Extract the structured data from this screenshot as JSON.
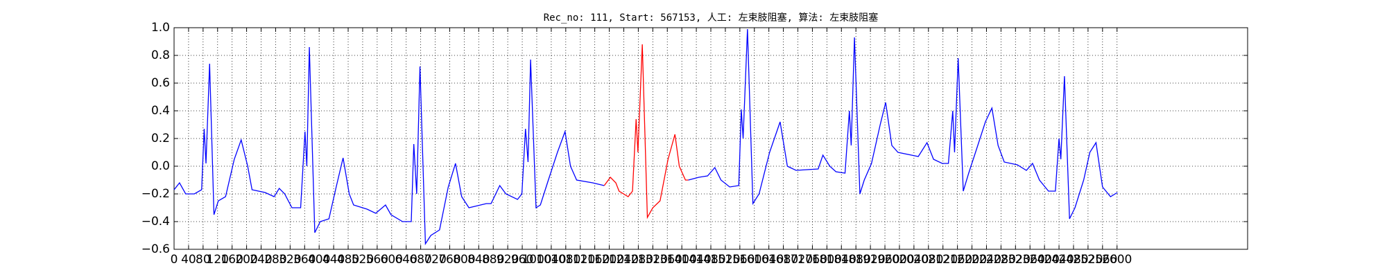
{
  "chart_data": {
    "type": "line",
    "title": "Rec_no: 111, Start: 567153, 人工: 左束肢阻塞, 算法: 左束肢阻塞",
    "xlim": [
      0,
      2960
    ],
    "xticks": [
      0,
      40,
      80,
      120,
      160,
      200,
      240,
      280,
      320,
      360,
      400,
      440,
      480,
      520,
      560,
      600,
      640,
      680,
      720,
      760,
      800,
      840,
      880,
      920,
      960,
      1000,
      1040,
      1080,
      1120,
      1160,
      1200,
      1240,
      1280,
      1320,
      1360,
      1400,
      1440,
      1480,
      1520,
      1560,
      1600,
      1640,
      1680,
      1720,
      1760,
      1800,
      1840,
      1880,
      1920,
      1960,
      2000,
      2040,
      2080,
      2120,
      2160,
      2200,
      2240,
      2280,
      2320,
      2360,
      2400,
      2440,
      2480,
      2520,
      2560,
      2600
    ],
    "ylim": [
      -0.6,
      1.0
    ],
    "yticks": [
      {
        "value": -0.6,
        "label": "−0.6"
      },
      {
        "value": -0.4,
        "label": "−0.4"
      },
      {
        "value": -0.2,
        "label": "−0.2"
      },
      {
        "value": 0.0,
        "label": "0.0"
      },
      0.2,
      0.4,
      0.6,
      0.8,
      {
        "value": 1.0,
        "label": "1.0"
      }
    ],
    "grid": true,
    "series": [
      {
        "color": "#0000ff",
        "x": [
          0,
          15,
          32,
          56,
          76,
          83,
          88,
          98,
          110,
          122,
          142,
          166,
          185,
          203,
          215,
          251,
          276,
          290,
          305,
          325,
          349,
          361,
          366,
          373,
          388,
          403,
          427,
          447,
          466,
          483,
          495,
          532,
          556,
          583,
          598,
          630,
          654,
          661,
          669,
          678,
          693,
          708,
          732,
          756,
          776,
          793,
          813,
          861,
          874,
          898,
          915,
          947,
          959,
          969,
          976,
          983,
          998,
          1010,
          1032,
          1057,
          1078,
          1093,
          1110,
          1154,
          1186
        ],
        "values": [
          -0.17,
          -0.12,
          -0.2,
          -0.2,
          -0.17,
          0.27,
          0.02,
          0.74,
          -0.35,
          -0.25,
          -0.22,
          0.05,
          0.19,
          0.0,
          -0.17,
          -0.19,
          -0.22,
          -0.16,
          -0.2,
          -0.3,
          -0.3,
          0.25,
          0.0,
          0.86,
          -0.48,
          -0.4,
          -0.38,
          -0.15,
          0.06,
          -0.2,
          -0.28,
          -0.31,
          -0.34,
          -0.28,
          -0.35,
          -0.4,
          -0.4,
          0.16,
          -0.2,
          0.72,
          -0.56,
          -0.5,
          -0.46,
          -0.15,
          0.02,
          -0.22,
          -0.3,
          -0.27,
          -0.27,
          -0.14,
          -0.2,
          -0.24,
          -0.2,
          0.27,
          0.03,
          0.77,
          -0.3,
          -0.28,
          -0.1,
          0.1,
          0.25,
          0.0,
          -0.1,
          -0.12,
          -0.14
        ]
      },
      {
        "color": "#ff0000",
        "x": [
          1186,
          1203,
          1218,
          1227,
          1252,
          1264,
          1274,
          1279,
          1291,
          1305,
          1320,
          1340,
          1362,
          1381,
          1393,
          1410,
          1418
        ],
        "values": [
          -0.14,
          -0.08,
          -0.12,
          -0.18,
          -0.22,
          -0.18,
          0.34,
          0.1,
          0.88,
          -0.37,
          -0.3,
          -0.25,
          0.05,
          0.23,
          0.0,
          -0.1,
          -0.1
        ]
      },
      {
        "color": "#0000ff",
        "x": [
          1418,
          1447,
          1471,
          1491,
          1508,
          1532,
          1557,
          1564,
          1569,
          1581,
          1596,
          1613,
          1642,
          1671,
          1691,
          1715,
          1776,
          1789,
          1808,
          1825,
          1850,
          1862,
          1867,
          1876,
          1891,
          1903,
          1923,
          1947,
          1962,
          1979,
          1996,
          2033,
          2052,
          2076,
          2094,
          2118,
          2135,
          2147,
          2152,
          2162,
          2176,
          2191,
          2216,
          2237,
          2255,
          2272,
          2289,
          2325,
          2350,
          2367,
          2386,
          2411,
          2430,
          2440,
          2445,
          2455,
          2469,
          2484,
          2508,
          2525,
          2542,
          2560,
          2582,
          2601
        ],
        "values": [
          -0.1,
          -0.08,
          -0.07,
          -0.01,
          -0.1,
          -0.15,
          -0.14,
          0.41,
          0.2,
          0.99,
          -0.27,
          -0.2,
          0.1,
          0.32,
          0.0,
          -0.03,
          -0.02,
          0.08,
          0.0,
          -0.04,
          -0.05,
          0.4,
          0.15,
          0.93,
          -0.2,
          -0.1,
          0.02,
          0.3,
          0.46,
          0.15,
          0.1,
          0.08,
          0.07,
          0.17,
          0.05,
          0.02,
          0.02,
          0.4,
          0.1,
          0.78,
          -0.18,
          -0.05,
          0.15,
          0.32,
          0.42,
          0.15,
          0.03,
          0.01,
          -0.03,
          0.02,
          -0.1,
          -0.18,
          -0.18,
          0.2,
          0.05,
          0.65,
          -0.38,
          -0.3,
          -0.1,
          0.1,
          0.17,
          -0.15,
          -0.22,
          -0.19
        ]
      }
    ]
  }
}
